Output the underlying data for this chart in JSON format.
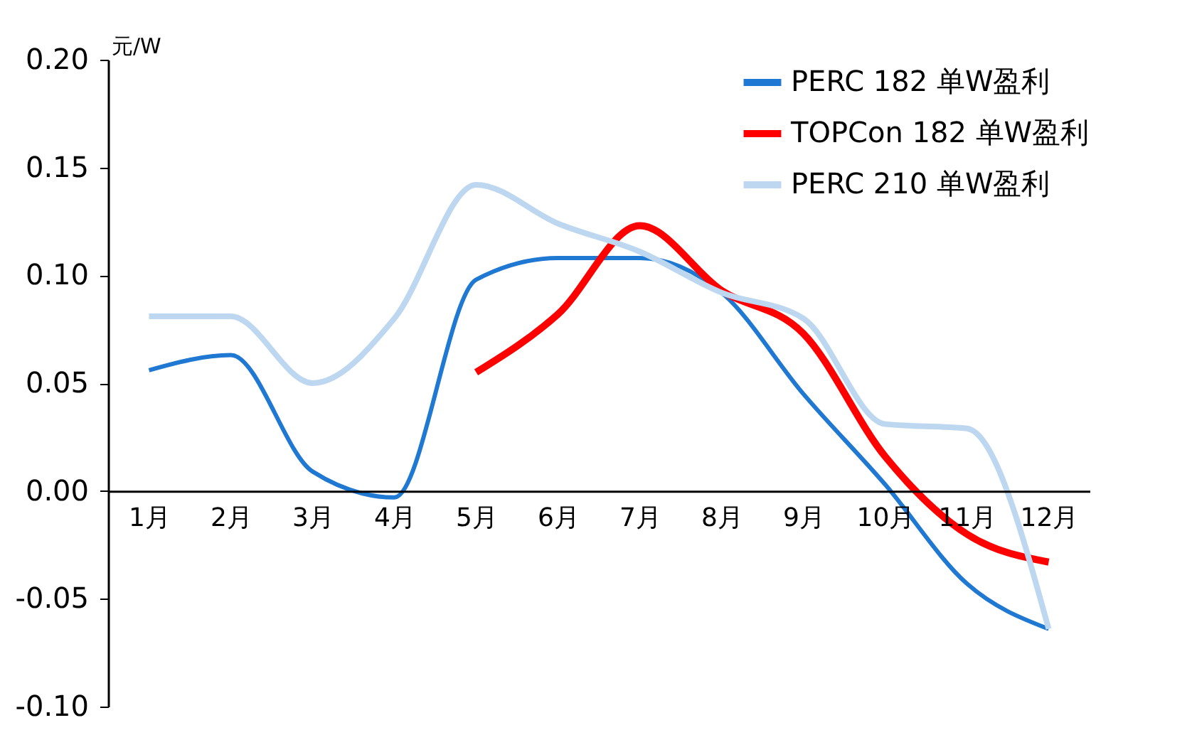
{
  "chart_data": {
    "type": "line",
    "ylabel": "元/W",
    "categories": [
      "1月",
      "2月",
      "3月",
      "4月",
      "5月",
      "6月",
      "7月",
      "8月",
      "9月",
      "10月",
      "11月",
      "12月"
    ],
    "series": [
      {
        "name": "PERC 182 单W盈利",
        "color": "#1f78d1",
        "values": [
          0.056,
          0.063,
          0.009,
          -0.003,
          0.098,
          0.108,
          0.108,
          0.092,
          0.045,
          0.003,
          -0.043,
          -0.064
        ]
      },
      {
        "name": "TOPCon 182 单W盈利",
        "color": "#ff0000",
        "values": [
          null,
          null,
          null,
          null,
          0.055,
          0.082,
          0.123,
          0.093,
          0.073,
          0.016,
          -0.02,
          -0.033
        ]
      },
      {
        "name": "PERC 210 单W盈利",
        "color": "#bdd7f0",
        "values": [
          0.081,
          0.081,
          0.05,
          0.08,
          0.142,
          0.124,
          0.111,
          0.092,
          0.08,
          0.031,
          0.029,
          -0.064
        ]
      }
    ],
    "ylim": [
      -0.1,
      0.2
    ],
    "yticks": [
      {
        "value": -0.1,
        "label": "-0.10"
      },
      {
        "value": -0.05,
        "label": "-0.05"
      },
      {
        "value": 0,
        "label": "0.00"
      },
      {
        "value": 0.05,
        "label": "0.05"
      },
      {
        "value": 0.1,
        "label": "0.10"
      },
      {
        "value": 0.15,
        "label": "0.15"
      },
      {
        "value": 0.2,
        "label": "0.20"
      }
    ],
    "grid": false,
    "legend": "top right",
    "marker": "none",
    "line_style": "solid"
  }
}
